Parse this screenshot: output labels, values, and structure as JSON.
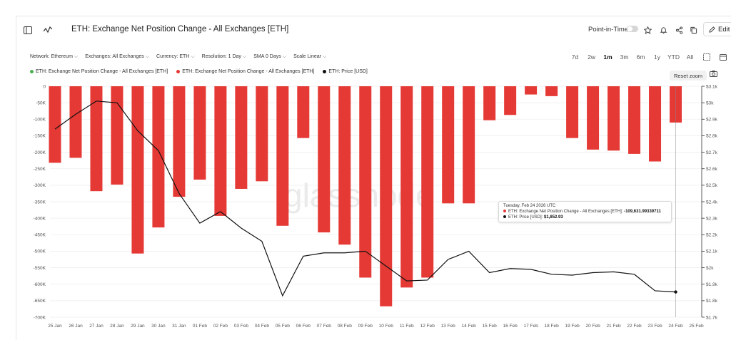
{
  "header": {
    "title": "ETH: Exchange Net Position Change - All Exchanges [ETH]",
    "point_in_time": "Point-in-Time",
    "edit_label": "Edit"
  },
  "filters": [
    {
      "label": "Network: Ethereum"
    },
    {
      "label": "Exchanges: All Exchanges"
    },
    {
      "label": "Currency: ETH"
    },
    {
      "label": "Resolution: 1 Day"
    },
    {
      "label": "SMA 0 Days"
    },
    {
      "label": "Scale Linear"
    }
  ],
  "ranges": [
    "7d",
    "2w",
    "1m",
    "3m",
    "6m",
    "1y",
    "YTD",
    "All"
  ],
  "active_range": "1m",
  "legend": [
    {
      "label": "ETH: Exchange Net Position Change - All Exchanges [ETH]",
      "color": "#4caf50"
    },
    {
      "label": "ETH: Exchange Net Position Change - All Exchanges [ETH]",
      "color": "#e53935"
    },
    {
      "label": "ETH: Price [USD]",
      "color": "#111111"
    }
  ],
  "reset_zoom": "Reset zoom",
  "watermark": "glassnode",
  "tooltip": {
    "date": "Tuesday, Feb 24 2026 UTC",
    "series1_label": "ETH: Exchange Net Position Change - All Exchanges [ETH]:",
    "series1_value": "-109,631.99339711",
    "series2_label": "ETH: Price [USD]:",
    "series2_value": "$1,852.93"
  },
  "chart_data": {
    "type": "bar",
    "title": "ETH: Exchange Net Position Change - All Exchanges [ETH]",
    "categories": [
      "25 Jan",
      "26 Jan",
      "27 Jan",
      "28 Jan",
      "29 Jan",
      "30 Jan",
      "31 Jan",
      "01 Feb",
      "02 Feb",
      "03 Feb",
      "04 Feb",
      "05 Feb",
      "06 Feb",
      "07 Feb",
      "08 Feb",
      "09 Feb",
      "10 Feb",
      "11 Feb",
      "12 Feb",
      "13 Feb",
      "14 Feb",
      "15 Feb",
      "16 Feb",
      "17 Feb",
      "18 Feb",
      "19 Feb",
      "20 Feb",
      "21 Feb",
      "22 Feb",
      "23 Feb",
      "24 Feb",
      "25 Feb"
    ],
    "series": [
      {
        "name": "ETH: Exchange Net Position Change - All Exchanges [ETH]",
        "color": "#e53935",
        "axis": "left",
        "values": [
          -232000,
          -217000,
          -318000,
          -298000,
          -507000,
          -428000,
          -335000,
          -283000,
          -393000,
          -311000,
          -288000,
          -423000,
          -157000,
          -443000,
          -480000,
          -580000,
          -667000,
          -610000,
          -580000,
          -355000,
          -355000,
          -103000,
          -87000,
          -25000,
          -30000,
          -157000,
          -192000,
          -195000,
          -205000,
          -228000,
          -110000,
          null
        ]
      },
      {
        "name": "ETH: Price [USD]",
        "color": "#111111",
        "axis": "right",
        "values": [
          2840,
          2930,
          3010,
          3000,
          2830,
          2710,
          2450,
          2270,
          2340,
          2240,
          2160,
          1830,
          2070,
          2090,
          2090,
          2100,
          2010,
          1920,
          1925,
          2050,
          2100,
          1970,
          1995,
          1990,
          1960,
          1955,
          1970,
          1975,
          1960,
          1860,
          1852.93,
          null
        ]
      }
    ],
    "y_left": {
      "min": -700000,
      "max": 0,
      "ticks": [
        0,
        -50000,
        -100000,
        -150000,
        -200000,
        -250000,
        -300000,
        -350000,
        -400000,
        -450000,
        -500000,
        -550000,
        -600000,
        -650000,
        -700000
      ],
      "tick_labels": [
        "0",
        "-50K",
        "-100K",
        "-150K",
        "-200K",
        "-250K",
        "-300K",
        "-350K",
        "-400K",
        "-450K",
        "-500K",
        "-550K",
        "-600K",
        "-650K",
        "-700K"
      ]
    },
    "y_right": {
      "min": 1700,
      "max": 3100,
      "ticks": [
        3100,
        3000,
        2900,
        2800,
        2700,
        2600,
        2500,
        2400,
        2300,
        2200,
        2100,
        2000,
        1900,
        1800,
        1700
      ],
      "tick_labels": [
        "$3.1k",
        "$3k",
        "$2.9k",
        "$2.8k",
        "$2.7k",
        "$2.6k",
        "$2.5k",
        "$2.4k",
        "$2.3k",
        "$2.2k",
        "$2.1k",
        "$2k",
        "$1.9k",
        "$1.8k",
        "$1.7k"
      ]
    },
    "grid": true,
    "legend_position": "top-left"
  }
}
